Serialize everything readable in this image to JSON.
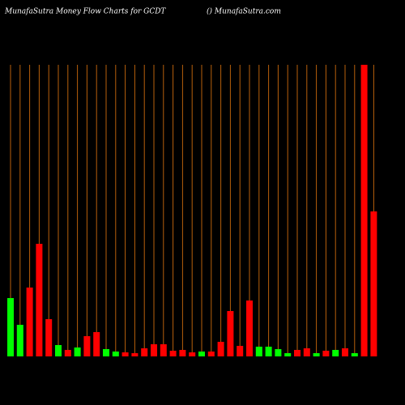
{
  "chart_data": {
    "type": "bar",
    "title": "MunafaSutra  Money Flow  Charts for GCDT",
    "subtitle": "() MunafaSutra.com",
    "values": [
      72,
      39,
      85,
      139,
      46,
      14,
      8,
      11,
      25,
      30,
      9,
      6,
      5,
      4,
      10,
      15,
      15,
      7,
      8,
      5,
      6,
      6,
      18,
      56,
      13,
      69,
      12,
      12,
      9,
      4,
      8,
      10,
      4,
      7,
      8,
      10,
      4,
      360,
      179
    ],
    "colors": [
      "#00ff00",
      "#00ff00",
      "#ff0000",
      "#ff0000",
      "#ff0000",
      "#00ff00",
      "#ff0000",
      "#00ff00",
      "#ff0000",
      "#ff0000",
      "#00ff00",
      "#00ff00",
      "#ff0000",
      "#ff0000",
      "#ff0000",
      "#ff0000",
      "#ff0000",
      "#ff0000",
      "#ff0000",
      "#ff0000",
      "#00ff00",
      "#ff0000",
      "#ff0000",
      "#ff0000",
      "#ff0000",
      "#ff0000",
      "#00ff00",
      "#00ff00",
      "#00ff00",
      "#00ff00",
      "#ff0000",
      "#ff0000",
      "#00ff00",
      "#ff0000",
      "#00ff00",
      "#ff0000",
      "#00ff00",
      "#ff0000",
      "#ff0000"
    ],
    "grid_color": "#b8600b",
    "ylim": [
      0,
      360
    ]
  }
}
